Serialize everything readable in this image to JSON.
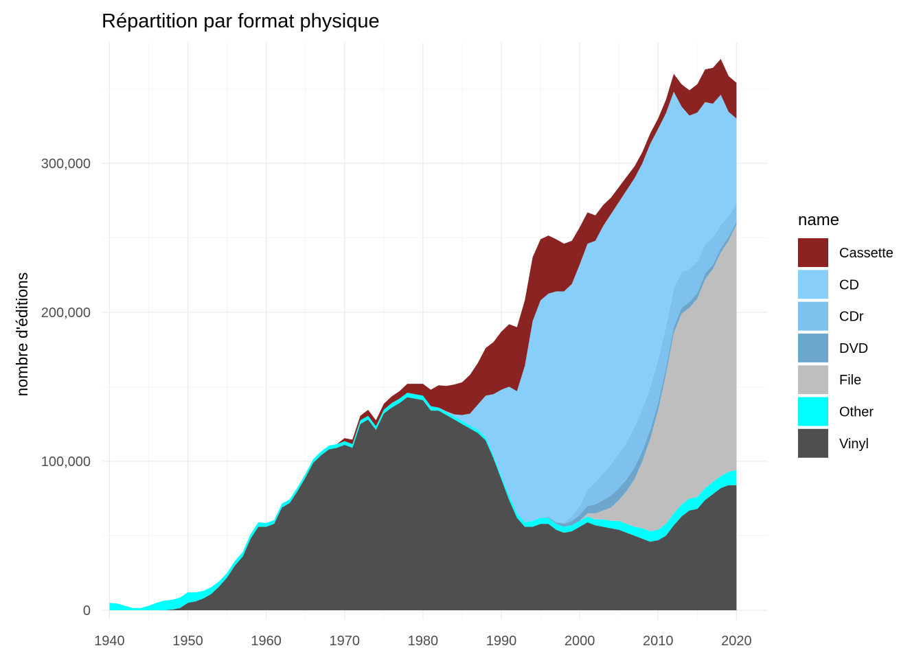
{
  "chart_data": {
    "type": "area",
    "stacked": true,
    "title": "Répartition par format physique",
    "xlabel": "",
    "ylabel": "nombre d'éditions",
    "xlim": [
      1939,
      2024
    ],
    "ylim": [
      -6000,
      381000
    ],
    "x_ticks": [
      1940,
      1950,
      1960,
      1970,
      1980,
      1990,
      2000,
      2010,
      2020
    ],
    "x_tick_labels": [
      "1940",
      "1950",
      "1960",
      "1970",
      "1980",
      "1990",
      "2000",
      "2010",
      "2020"
    ],
    "y_ticks": [
      0,
      100000,
      200000,
      300000
    ],
    "y_tick_labels": [
      "0",
      "100,000",
      "200,000",
      "300,000"
    ],
    "grid": true,
    "legend_title": "name",
    "legend_position": "right",
    "stack_order_bottom_to_top": [
      "Vinyl",
      "Other",
      "File",
      "DVD",
      "CDr",
      "CD",
      "Cassette"
    ],
    "x": [
      1940,
      1941,
      1942,
      1943,
      1944,
      1945,
      1946,
      1947,
      1948,
      1949,
      1950,
      1951,
      1952,
      1953,
      1954,
      1955,
      1956,
      1957,
      1958,
      1959,
      1960,
      1961,
      1962,
      1963,
      1964,
      1965,
      1966,
      1967,
      1968,
      1969,
      1970,
      1971,
      1972,
      1973,
      1974,
      1975,
      1976,
      1977,
      1978,
      1979,
      1980,
      1981,
      1982,
      1983,
      1984,
      1985,
      1986,
      1987,
      1988,
      1989,
      1990,
      1991,
      1992,
      1993,
      1994,
      1995,
      1996,
      1997,
      1998,
      1999,
      2000,
      2001,
      2002,
      2003,
      2004,
      2005,
      2006,
      2007,
      2008,
      2009,
      2010,
      2011,
      2012,
      2013,
      2014,
      2015,
      2016,
      2017,
      2018,
      2019,
      2020
    ],
    "series": [
      {
        "name": "Cassette",
        "color": "#8b2323",
        "values": [
          0,
          0,
          0,
          0,
          0,
          0,
          0,
          0,
          0,
          0,
          0,
          0,
          0,
          0,
          0,
          0,
          0,
          0,
          0,
          0,
          0,
          0,
          0,
          0,
          0,
          0,
          0,
          0,
          0,
          0,
          2000,
          3000,
          3000,
          4000,
          4000,
          4000,
          4500,
          5000,
          6000,
          7000,
          8000,
          11000,
          15000,
          17000,
          20000,
          22000,
          26000,
          28000,
          32000,
          35000,
          39000,
          42000,
          43000,
          44000,
          43000,
          41000,
          39000,
          35000,
          32000,
          29000,
          25000,
          21000,
          17000,
          14000,
          11000,
          10000,
          9000,
          8000,
          7500,
          7000,
          7000,
          9000,
          12000,
          15000,
          17000,
          19000,
          22000,
          24000,
          24000,
          24000,
          24000
        ]
      },
      {
        "name": "CD",
        "color": "#87cefa",
        "values": [
          0,
          0,
          0,
          0,
          0,
          0,
          0,
          0,
          0,
          0,
          0,
          0,
          0,
          0,
          0,
          0,
          0,
          0,
          0,
          0,
          0,
          0,
          0,
          0,
          0,
          0,
          0,
          0,
          0,
          0,
          0,
          0,
          0,
          0,
          0,
          0,
          0,
          0,
          0,
          0,
          0,
          0,
          0,
          500,
          1500,
          4000,
          8000,
          17000,
          28000,
          41000,
          58000,
          73000,
          82000,
          105000,
          134000,
          146000,
          150000,
          155000,
          155000,
          156000,
          162000,
          165000,
          162000,
          166000,
          168000,
          169000,
          169000,
          167000,
          165000,
          163000,
          155000,
          143000,
          132000,
          111000,
          103000,
          100000,
          95000,
          90000,
          87000,
          70000,
          57000
        ]
      },
      {
        "name": "CDr",
        "color": "#7ec0ee",
        "values": [
          0,
          0,
          0,
          0,
          0,
          0,
          0,
          0,
          0,
          0,
          0,
          0,
          0,
          0,
          0,
          0,
          0,
          0,
          0,
          0,
          0,
          0,
          0,
          0,
          0,
          0,
          0,
          0,
          0,
          0,
          0,
          0,
          0,
          0,
          0,
          0,
          0,
          0,
          0,
          0,
          0,
          0,
          0,
          0,
          0,
          0,
          0,
          0,
          0,
          0,
          0,
          0,
          0,
          0,
          0,
          0,
          0,
          0,
          1000,
          3000,
          6000,
          11000,
          15000,
          18000,
          21000,
          23000,
          25000,
          27000,
          28000,
          29000,
          29000,
          28000,
          26000,
          24000,
          22000,
          21000,
          20000,
          18000,
          16000,
          14000,
          12000
        ]
      },
      {
        "name": "DVD",
        "color": "#6ca6cd",
        "values": [
          0,
          0,
          0,
          0,
          0,
          0,
          0,
          0,
          0,
          0,
          0,
          0,
          0,
          0,
          0,
          0,
          0,
          0,
          0,
          0,
          0,
          0,
          0,
          0,
          0,
          0,
          0,
          0,
          0,
          0,
          0,
          0,
          0,
          0,
          0,
          0,
          0,
          0,
          0,
          0,
          0,
          0,
          0,
          0,
          0,
          0,
          0,
          0,
          0,
          0,
          0,
          0,
          0,
          0,
          0,
          0,
          500,
          1000,
          2000,
          3000,
          4000,
          5000,
          6000,
          7000,
          8000,
          8000,
          8000,
          8000,
          7000,
          6000,
          5000,
          4500,
          4000,
          4000,
          4000,
          4000,
          4000,
          3000,
          3000,
          2500,
          2000
        ]
      },
      {
        "name": "File",
        "color": "#bebebe",
        "values": [
          0,
          0,
          0,
          0,
          0,
          0,
          0,
          0,
          0,
          0,
          0,
          0,
          0,
          0,
          0,
          0,
          0,
          0,
          0,
          0,
          0,
          0,
          0,
          0,
          0,
          0,
          0,
          0,
          0,
          0,
          0,
          0,
          0,
          0,
          0,
          0,
          0,
          0,
          0,
          0,
          0,
          0,
          0,
          0,
          0,
          0,
          0,
          0,
          0,
          0,
          0,
          0,
          0,
          0,
          0,
          0,
          0,
          0,
          0,
          0,
          0,
          2000,
          4000,
          6000,
          9000,
          14000,
          22000,
          32000,
          45000,
          62000,
          80000,
          100000,
          121000,
          128000,
          128000,
          133000,
          140000,
          143000,
          150000,
          155000,
          165000
        ]
      },
      {
        "name": "Other",
        "color": "#00ffff",
        "values": [
          5000,
          4500,
          3000,
          1500,
          1500,
          3000,
          5000,
          6500,
          6500,
          7000,
          7000,
          6000,
          5000,
          4500,
          3500,
          3000,
          3000,
          3000,
          3000,
          3000,
          2500,
          2500,
          2500,
          2500,
          2500,
          2500,
          2500,
          2500,
          2500,
          2500,
          2500,
          2500,
          2500,
          2500,
          2500,
          2500,
          3000,
          3000,
          3000,
          3000,
          3000,
          3000,
          2000,
          2000,
          2000,
          2000,
          2000,
          2000,
          2000,
          2000,
          2000,
          3000,
          3000,
          3000,
          4000,
          4000,
          4000,
          4000,
          4000,
          4000,
          4000,
          4000,
          4000,
          5000,
          5000,
          6000,
          6000,
          6000,
          7000,
          7000,
          7000,
          8000,
          8000,
          8000,
          8000,
          8000,
          8000,
          8000,
          8000,
          9000,
          10000
        ]
      },
      {
        "name": "Vinyl",
        "color": "#4f4f4f",
        "values": [
          0,
          0,
          0,
          0,
          0,
          0,
          0,
          0,
          500,
          1500,
          5000,
          6000,
          8000,
          11000,
          16000,
          22000,
          30000,
          36000,
          48000,
          56000,
          56000,
          58000,
          69000,
          72000,
          80000,
          89000,
          99000,
          104000,
          108000,
          109000,
          111000,
          109000,
          125000,
          128000,
          121000,
          132000,
          136000,
          139000,
          143000,
          142000,
          141000,
          134000,
          134000,
          131000,
          128000,
          125000,
          122000,
          119000,
          114000,
          102000,
          88000,
          74000,
          62000,
          56000,
          56000,
          58000,
          58000,
          54000,
          52000,
          53000,
          56000,
          59000,
          57000,
          56000,
          55000,
          54000,
          52000,
          50000,
          48000,
          46000,
          47000,
          50000,
          57000,
          63000,
          67000,
          68000,
          74000,
          78000,
          82000,
          84000,
          84000
        ]
      }
    ]
  }
}
